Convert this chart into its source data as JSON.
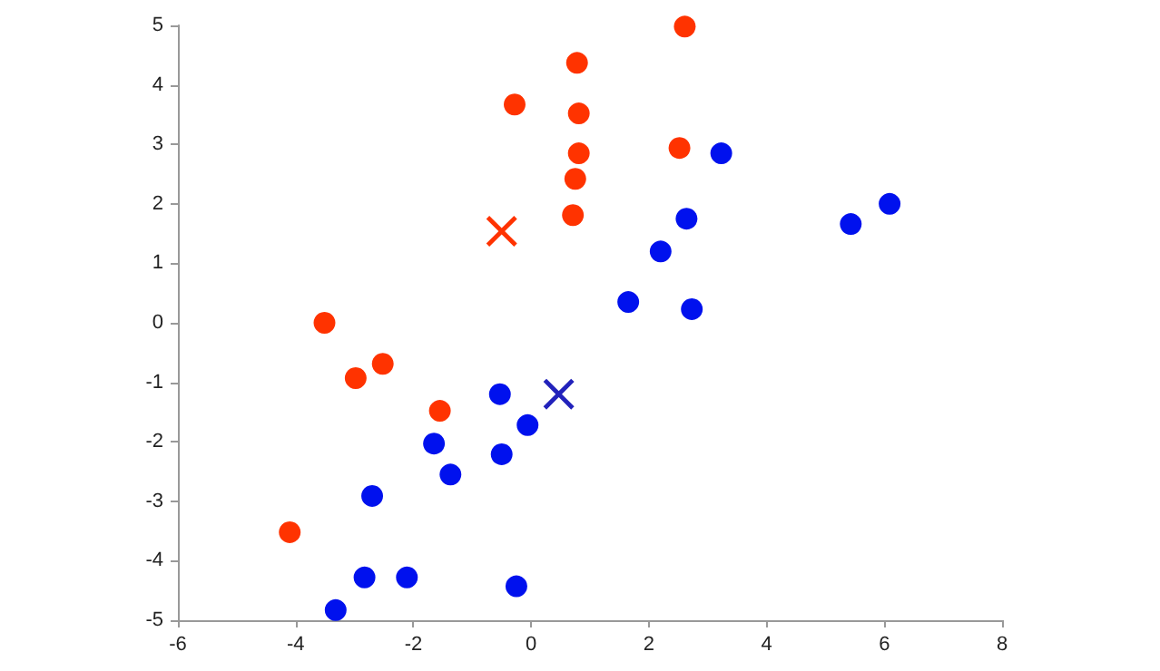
{
  "chart_data": {
    "type": "scatter",
    "xlim": [
      -6,
      8
    ],
    "ylim": [
      -5,
      5
    ],
    "xticks": [
      -6,
      -4,
      -2,
      0,
      2,
      4,
      6,
      8
    ],
    "yticks": [
      -5,
      -4,
      -3,
      -2,
      -1,
      0,
      1,
      2,
      3,
      4,
      5
    ],
    "grid": false,
    "series": [
      {
        "color": "#ff3300",
        "marker": "circle",
        "x": [
          2.61,
          0.78,
          -0.28,
          0.81,
          0.81,
          2.52,
          0.75,
          0.71,
          -3.51,
          -2.52,
          -2.98,
          -1.55,
          -4.1
        ],
        "values": [
          4.98,
          4.37,
          3.67,
          3.52,
          2.85,
          2.94,
          2.42,
          1.81,
          0.0,
          -0.69,
          -0.93,
          -1.48,
          -3.52
        ]
      },
      {
        "color": "#0011ee",
        "marker": "circle",
        "x": [
          3.23,
          6.09,
          5.43,
          2.64,
          2.2,
          1.65,
          2.73,
          -0.53,
          -0.06,
          -1.65,
          -0.5,
          -1.37,
          -2.7,
          -2.83,
          -2.11,
          -0.25,
          -3.32
        ],
        "values": [
          2.85,
          2.0,
          1.66,
          1.75,
          1.2,
          0.35,
          0.23,
          -1.2,
          -1.72,
          -2.03,
          -2.21,
          -2.55,
          -2.91,
          -4.28,
          -4.28,
          -4.43,
          -4.83
        ]
      },
      {
        "color": "#ff3300",
        "marker": "cross",
        "x": [
          -0.5
        ],
        "values": [
          1.54
        ]
      },
      {
        "color": "#2222bb",
        "marker": "cross",
        "x": [
          0.47
        ],
        "values": [
          -1.2
        ]
      }
    ]
  }
}
